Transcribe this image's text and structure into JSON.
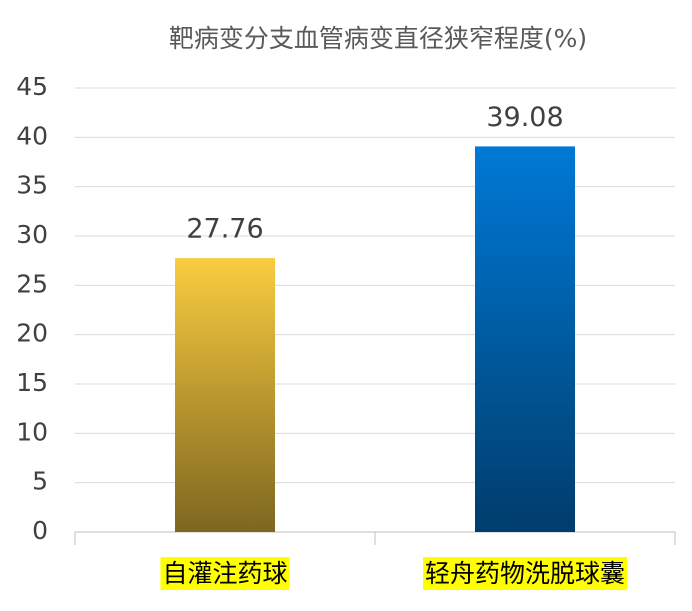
{
  "chart_data": {
    "type": "bar",
    "title": "靶病变分支血管病变直径狭窄程度(%)",
    "categories": [
      "自灌注药球",
      "轻舟药物洗脱球囊"
    ],
    "values": [
      27.76,
      39.08
    ],
    "colors": [
      "#f9cc40",
      "#0079d6"
    ],
    "ylim": [
      0,
      45
    ],
    "yticks": [
      0,
      5,
      10,
      15,
      20,
      25,
      30,
      35,
      40,
      45
    ],
    "grid": true
  }
}
